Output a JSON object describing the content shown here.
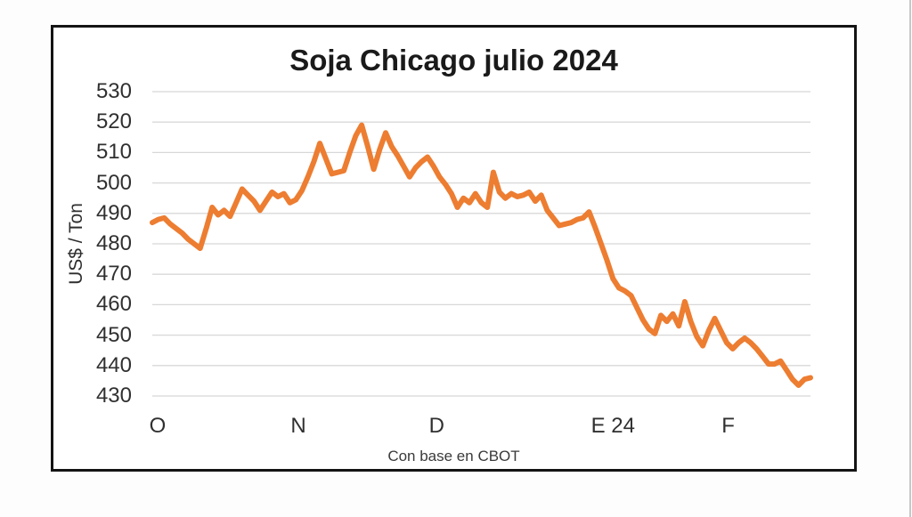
{
  "chart_data": {
    "type": "line",
    "title": "Soja Chicago julio 2024",
    "ylabel": "US$ / Ton",
    "footnote": "Con base en CBOT",
    "ylim": [
      430,
      530
    ],
    "yticks": [
      530,
      520,
      510,
      500,
      490,
      480,
      470,
      460,
      450,
      440,
      430
    ],
    "grid": "horizontal-only",
    "legend": "none",
    "line_color": "#ED7D31",
    "grid_color": "#D8D8D8",
    "x_labels": [
      {
        "label": "O",
        "pos": 0.008
      },
      {
        "label": "N",
        "pos": 0.222
      },
      {
        "label": "D",
        "pos": 0.432
      },
      {
        "label": "E 24",
        "pos": 0.7
      },
      {
        "label": "F",
        "pos": 0.875
      }
    ],
    "series": [
      {
        "name": "Soja Chicago julio 2024 (US$/Ton)",
        "values": [
          487,
          488,
          488.5,
          486.5,
          485,
          483.5,
          481.5,
          480,
          478.5,
          485,
          492,
          489.5,
          491,
          489,
          493.5,
          498,
          496,
          494,
          491,
          494,
          497,
          495.5,
          496.5,
          493.5,
          494.5,
          497.5,
          502,
          507,
          513,
          508,
          503,
          503.5,
          504,
          510,
          515.5,
          519,
          512,
          504.5,
          511,
          516.5,
          512,
          509,
          505.5,
          502,
          505,
          507,
          508.5,
          505.5,
          502,
          499.5,
          496.5,
          492,
          495,
          493.5,
          496.5,
          493.5,
          492,
          503.5,
          497,
          495,
          496.5,
          495.5,
          496,
          497,
          494,
          496,
          491,
          488.5,
          486,
          486.5,
          487,
          488,
          488.5,
          490.5,
          485.5,
          480,
          474.5,
          468.5,
          465.5,
          464.5,
          463,
          459,
          455,
          452,
          450.5,
          456.5,
          454.5,
          457,
          453,
          461,
          454.5,
          449.5,
          446.5,
          451.5,
          455.5,
          451.5,
          447.5,
          445.5,
          447.5,
          449,
          447.5,
          445.5,
          443,
          440.5,
          440.5,
          441.5,
          438.5,
          435.5,
          433.5,
          435.5,
          436
        ]
      }
    ]
  }
}
